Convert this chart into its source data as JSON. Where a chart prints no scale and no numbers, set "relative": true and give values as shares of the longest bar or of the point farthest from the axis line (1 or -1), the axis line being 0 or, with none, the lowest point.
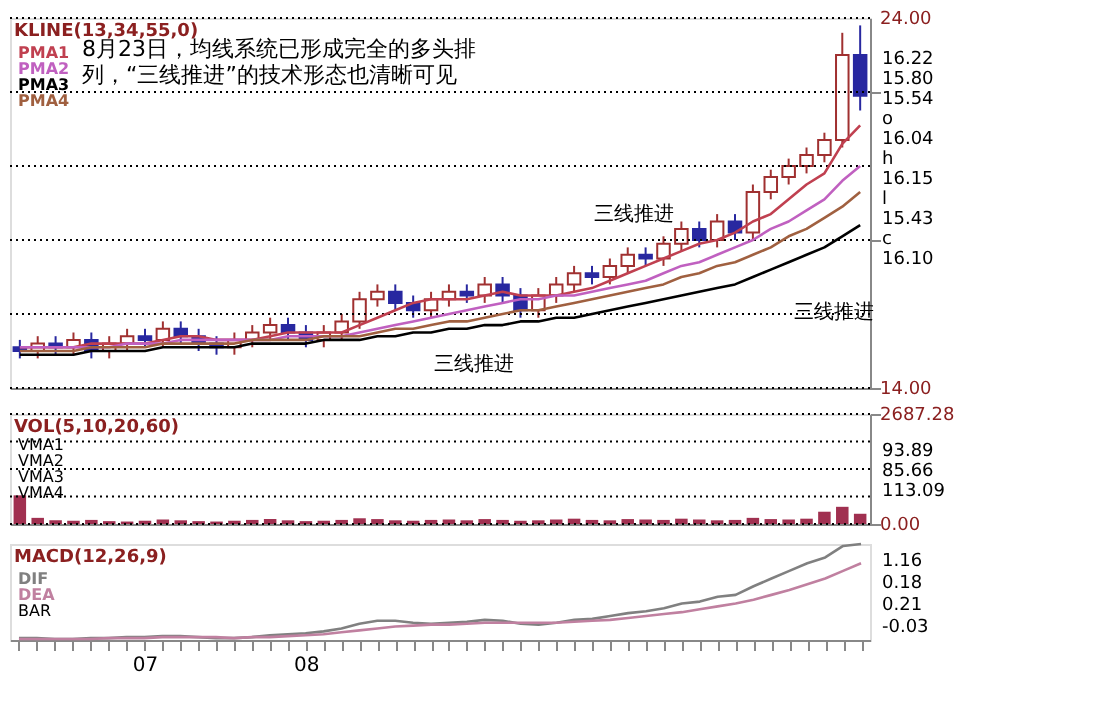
{
  "chart_data": [
    {
      "type": "candlestick",
      "title": "KLINE(13,34,55,0)",
      "categories": [
        null,
        null,
        null,
        null,
        null,
        null,
        null,
        null,
        null,
        null,
        null,
        null,
        null,
        null,
        null,
        null,
        null,
        null,
        null,
        null,
        null,
        null,
        null,
        null,
        null,
        null,
        null,
        null,
        null,
        null,
        null,
        null,
        null,
        null,
        null,
        null,
        null,
        null,
        null,
        null,
        null,
        null,
        null,
        null,
        null,
        null,
        null,
        null
      ],
      "ohlc": [
        [
          15.1,
          15.3,
          14.8,
          15.0
        ],
        [
          15.0,
          15.4,
          14.8,
          15.2
        ],
        [
          15.2,
          15.4,
          14.9,
          15.1
        ],
        [
          15.1,
          15.5,
          14.9,
          15.3
        ],
        [
          15.3,
          15.5,
          14.8,
          15.0
        ],
        [
          15.0,
          15.4,
          14.8,
          15.2
        ],
        [
          15.2,
          15.6,
          15.0,
          15.4
        ],
        [
          15.4,
          15.6,
          15.1,
          15.3
        ],
        [
          15.3,
          15.8,
          15.1,
          15.6
        ],
        [
          15.6,
          15.8,
          15.2,
          15.4
        ],
        [
          15.4,
          15.6,
          15.0,
          15.2
        ],
        [
          15.2,
          15.4,
          14.9,
          15.1
        ],
        [
          15.1,
          15.5,
          14.9,
          15.3
        ],
        [
          15.3,
          15.7,
          15.1,
          15.5
        ],
        [
          15.5,
          15.9,
          15.3,
          15.7
        ],
        [
          15.7,
          15.9,
          15.3,
          15.5
        ],
        [
          15.5,
          15.7,
          15.1,
          15.3
        ],
        [
          15.3,
          15.7,
          15.1,
          15.5
        ],
        [
          15.5,
          16.0,
          15.3,
          15.8
        ],
        [
          15.8,
          16.6,
          15.6,
          16.4
        ],
        [
          16.4,
          16.8,
          16.2,
          16.6
        ],
        [
          16.6,
          16.8,
          16.1,
          16.3
        ],
        [
          16.3,
          16.5,
          15.9,
          16.1
        ],
        [
          16.1,
          16.6,
          15.9,
          16.4
        ],
        [
          16.4,
          16.8,
          16.2,
          16.6
        ],
        [
          16.6,
          16.8,
          16.3,
          16.5
        ],
        [
          16.5,
          17.0,
          16.3,
          16.8
        ],
        [
          16.8,
          17.0,
          16.3,
          16.5
        ],
        [
          16.5,
          16.7,
          15.9,
          16.1
        ],
        [
          16.1,
          16.7,
          15.9,
          16.5
        ],
        [
          16.5,
          17.0,
          16.3,
          16.8
        ],
        [
          16.8,
          17.3,
          16.6,
          17.1
        ],
        [
          17.1,
          17.3,
          16.8,
          17.0
        ],
        [
          17.0,
          17.5,
          16.8,
          17.3
        ],
        [
          17.3,
          17.8,
          17.1,
          17.6
        ],
        [
          17.6,
          17.8,
          17.3,
          17.5
        ],
        [
          17.5,
          18.1,
          17.3,
          17.9
        ],
        [
          17.9,
          18.5,
          17.7,
          18.3
        ],
        [
          18.3,
          18.5,
          17.8,
          18.0
        ],
        [
          18.0,
          18.7,
          17.8,
          18.5
        ],
        [
          18.5,
          18.7,
          18.0,
          18.2
        ],
        [
          18.2,
          19.5,
          18.0,
          19.3
        ],
        [
          19.3,
          19.9,
          19.1,
          19.7
        ],
        [
          19.7,
          20.2,
          19.5,
          20.0
        ],
        [
          20.0,
          20.5,
          19.8,
          20.3
        ],
        [
          20.3,
          20.9,
          20.1,
          20.7
        ],
        [
          20.7,
          23.6,
          20.5,
          23.0
        ],
        [
          23.0,
          23.8,
          21.5,
          21.9
        ]
      ],
      "colors": [
        "#2828a0",
        "#a03030",
        "#2828a0",
        "#a03030",
        "#2828a0",
        "#a03030",
        "#a03030",
        "#2828a0",
        "#a03030",
        "#2828a0",
        "#2828a0",
        "#2828a0",
        "#a03030",
        "#a03030",
        "#a03030",
        "#2828a0",
        "#2828a0",
        "#a03030",
        "#a03030",
        "#a03030",
        "#a03030",
        "#2828a0",
        "#2828a0",
        "#a03030",
        "#a03030",
        "#2828a0",
        "#a03030",
        "#2828a0",
        "#2828a0",
        "#a03030",
        "#a03030",
        "#a03030",
        "#2828a0",
        "#a03030",
        "#a03030",
        "#2828a0",
        "#a03030",
        "#a03030",
        "#2828a0",
        "#a03030",
        "#2828a0",
        "#a03030",
        "#a03030",
        "#a03030",
        "#a03030",
        "#a03030",
        "#a03030",
        "#2828a0"
      ],
      "series": [
        {
          "name": "PMA1",
          "type": "line",
          "color": "#c04050",
          "values": [
            15.1,
            15.1,
            15.1,
            15.1,
            15.2,
            15.2,
            15.2,
            15.2,
            15.3,
            15.4,
            15.4,
            15.3,
            15.3,
            15.3,
            15.4,
            15.5,
            15.5,
            15.5,
            15.5,
            15.7,
            15.9,
            16.1,
            16.3,
            16.4,
            16.4,
            16.4,
            16.5,
            16.6,
            16.5,
            16.5,
            16.5,
            16.6,
            16.7,
            16.9,
            17.1,
            17.3,
            17.5,
            17.7,
            17.9,
            18.0,
            18.2,
            18.5,
            18.7,
            19.1,
            19.5,
            19.8,
            20.6,
            21.1
          ]
        },
        {
          "name": "PMA2",
          "type": "line",
          "color": "#c060c0",
          "values": [
            15.1,
            15.1,
            15.1,
            15.1,
            15.1,
            15.1,
            15.2,
            15.2,
            15.2,
            15.3,
            15.3,
            15.3,
            15.3,
            15.3,
            15.3,
            15.4,
            15.4,
            15.4,
            15.4,
            15.5,
            15.6,
            15.7,
            15.8,
            15.9,
            16.0,
            16.1,
            16.2,
            16.3,
            16.4,
            16.4,
            16.5,
            16.5,
            16.6,
            16.7,
            16.8,
            16.9,
            17.1,
            17.3,
            17.4,
            17.6,
            17.8,
            18.0,
            18.3,
            18.5,
            18.8,
            19.1,
            19.6,
            20.0
          ]
        },
        {
          "name": "PMA3",
          "type": "line",
          "color": "#000000",
          "values": [
            14.9,
            14.9,
            14.9,
            14.9,
            15.0,
            15.0,
            15.0,
            15.0,
            15.1,
            15.1,
            15.1,
            15.1,
            15.1,
            15.2,
            15.2,
            15.2,
            15.2,
            15.3,
            15.3,
            15.3,
            15.4,
            15.4,
            15.5,
            15.5,
            15.6,
            15.6,
            15.7,
            15.7,
            15.8,
            15.8,
            15.9,
            15.9,
            16.0,
            16.1,
            16.2,
            16.3,
            16.4,
            16.5,
            16.6,
            16.7,
            16.8,
            17.0,
            17.2,
            17.4,
            17.6,
            17.8,
            18.1,
            18.4
          ]
        },
        {
          "name": "PMA4",
          "type": "line",
          "color": "#a06040",
          "values": [
            15.0,
            15.0,
            15.0,
            15.0,
            15.1,
            15.1,
            15.1,
            15.1,
            15.2,
            15.2,
            15.2,
            15.2,
            15.2,
            15.3,
            15.3,
            15.3,
            15.3,
            15.4,
            15.4,
            15.4,
            15.5,
            15.6,
            15.6,
            15.7,
            15.8,
            15.8,
            15.9,
            16.0,
            16.1,
            16.1,
            16.2,
            16.3,
            16.4,
            16.5,
            16.6,
            16.7,
            16.8,
            17.0,
            17.1,
            17.3,
            17.4,
            17.6,
            17.8,
            18.1,
            18.3,
            18.6,
            18.9,
            19.3
          ]
        }
      ],
      "ylim": [
        14,
        24
      ],
      "yticks": [
        {
          "value": 14,
          "label": "14.00"
        },
        {
          "value": 16,
          "label": null
        },
        {
          "value": 18,
          "label": null
        },
        {
          "value": 20,
          "label": null
        },
        {
          "value": 22,
          "label": null
        },
        {
          "value": 24,
          "label": "24.00"
        }
      ],
      "grid": "y",
      "legend": "top left",
      "tick_labels": "y",
      "annotations": [
        "8月23日，均线系统已形成完全的多头排",
        "列，“三线推进”的技术形态也清晰可见",
        "三线推进",
        "三线推进",
        "三线推进",
        "16.22",
        "15.80",
        "15.54",
        "o",
        "16.04",
        "h",
        "16.15",
        "l",
        "15.43",
        "c",
        "16.10"
      ]
    },
    {
      "type": "bar",
      "title": "VOL(5,10,20,60)",
      "categories": [
        null,
        null,
        null,
        null,
        null,
        null,
        null,
        null,
        null,
        null,
        null,
        null,
        null,
        null,
        null,
        null,
        null,
        null,
        null,
        null,
        null,
        null,
        null,
        null,
        null,
        null,
        null,
        null,
        null,
        null,
        null,
        null,
        null,
        null,
        null,
        null,
        null,
        null,
        null,
        null,
        null,
        null,
        null,
        null,
        null,
        null,
        null,
        null
      ],
      "values": [
        700,
        150,
        90,
        80,
        100,
        70,
        60,
        80,
        110,
        90,
        70,
        60,
        80,
        100,
        120,
        90,
        70,
        80,
        100,
        140,
        120,
        90,
        80,
        100,
        110,
        90,
        120,
        100,
        80,
        90,
        110,
        130,
        100,
        90,
        120,
        110,
        100,
        130,
        110,
        90,
        100,
        150,
        120,
        110,
        130,
        300,
        420,
        250
      ],
      "color": "#a03050",
      "ylim": [
        0,
        2687.28
      ],
      "yticks": [
        {
          "value": 0,
          "label": "0.00"
        },
        {
          "value": 671.82,
          "label": null
        },
        {
          "value": 1343.64,
          "label": null
        },
        {
          "value": 2015.46,
          "label": null
        },
        {
          "value": 2687.28,
          "label": "2687.28"
        }
      ],
      "grid": "y",
      "tick_labels": "y",
      "annotations": [
        "VMA1",
        "VMA2",
        "VMA3",
        "VMA4",
        "93.89",
        "85.66",
        "113.09"
      ]
    },
    {
      "type": "line",
      "title": "MACD(12,26,9)",
      "relative": true,
      "categories": [
        null,
        null,
        null,
        null,
        null,
        null,
        null,
        "07",
        null,
        null,
        null,
        null,
        null,
        null,
        null,
        null,
        "08",
        null,
        null,
        null,
        null,
        null,
        null,
        null,
        null,
        null,
        null,
        null,
        null,
        null,
        null,
        null,
        null,
        null,
        null,
        null,
        null,
        null,
        null,
        null,
        null,
        null,
        null,
        null,
        null,
        null,
        null,
        null
      ],
      "series": [
        {
          "name": "DIF",
          "color": "#808080",
          "values": [
            0.02,
            0.02,
            0.01,
            0.01,
            0.02,
            0.02,
            0.03,
            0.03,
            0.04,
            0.04,
            0.03,
            0.02,
            0.02,
            0.03,
            0.05,
            0.06,
            0.07,
            0.09,
            0.12,
            0.17,
            0.2,
            0.2,
            0.18,
            0.17,
            0.18,
            0.19,
            0.21,
            0.2,
            0.17,
            0.16,
            0.18,
            0.21,
            0.22,
            0.25,
            0.28,
            0.3,
            0.33,
            0.38,
            0.4,
            0.45,
            0.47,
            0.56,
            0.64,
            0.72,
            0.8,
            0.86,
            0.98,
            1
          ]
        },
        {
          "name": "DEA",
          "color": "#c080a0",
          "values": [
            0.01,
            0.01,
            0.01,
            0.01,
            0.01,
            0.02,
            0.02,
            0.02,
            0.03,
            0.03,
            0.03,
            0.03,
            0.02,
            0.03,
            0.03,
            0.04,
            0.05,
            0.06,
            0.08,
            0.1,
            0.12,
            0.14,
            0.15,
            0.16,
            0.16,
            0.17,
            0.18,
            0.18,
            0.18,
            0.18,
            0.18,
            0.19,
            0.2,
            0.21,
            0.23,
            0.25,
            0.27,
            0.29,
            0.32,
            0.35,
            0.38,
            0.42,
            0.47,
            0.52,
            0.58,
            0.64,
            0.72,
            0.8
          ]
        }
      ],
      "legend": "top left",
      "tick_labels": "x",
      "annotations": [
        "BAR",
        "1.16",
        "0.18",
        "0.21",
        "-0.03"
      ]
    }
  ]
}
